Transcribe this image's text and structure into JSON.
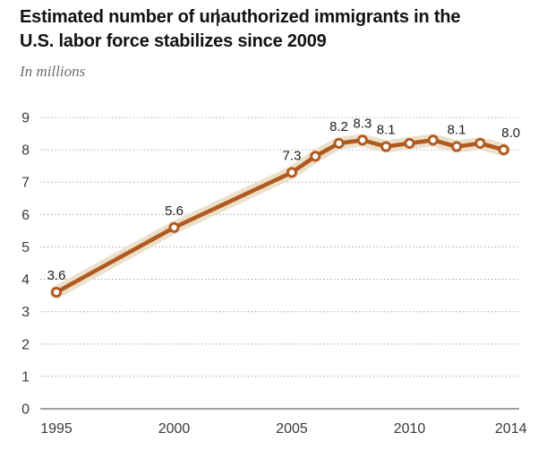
{
  "header": {
    "title_lines": [
      "Estimated number of unauthorized immigrants in the",
      "U.S. labor force stabilizes since 2009"
    ],
    "subtitle": "In millions"
  },
  "chart_data": {
    "type": "line",
    "title": "Estimated number of unauthorized immigrants in the U.S. labor force stabilizes since 2009",
    "subtitle": "In millions",
    "x": [
      1995,
      2000,
      2005,
      2006,
      2007,
      2008,
      2009,
      2010,
      2011,
      2012,
      2013,
      2014
    ],
    "values": [
      3.6,
      5.6,
      7.3,
      7.8,
      8.2,
      8.3,
      8.1,
      8.2,
      8.3,
      8.1,
      8.2,
      8.0
    ],
    "point_labels": [
      "3.6",
      "5.6",
      "7.3",
      "",
      "8.2",
      "8.3",
      "8.1",
      "",
      "",
      "8.1",
      "",
      "8.0"
    ],
    "xticks": [
      1995,
      2000,
      2005,
      2010,
      2014
    ],
    "yticks": [
      0,
      1,
      2,
      3,
      4,
      5,
      6,
      7,
      8,
      9
    ],
    "xlim": [
      1995,
      2014
    ],
    "ylim": [
      0,
      9
    ],
    "xlabel": "",
    "ylabel": "",
    "grid": "horizontal dotted",
    "legend": "none",
    "marker": "open-circle",
    "band": "light shaded margin-of-error band behind line",
    "colors": {
      "line": "#b05a1f",
      "band": "#ece0cb",
      "marker_fill": "#ffffff",
      "title": "#121212",
      "subtitle": "#6e6e6e",
      "tick": "#3a3a3a"
    }
  }
}
